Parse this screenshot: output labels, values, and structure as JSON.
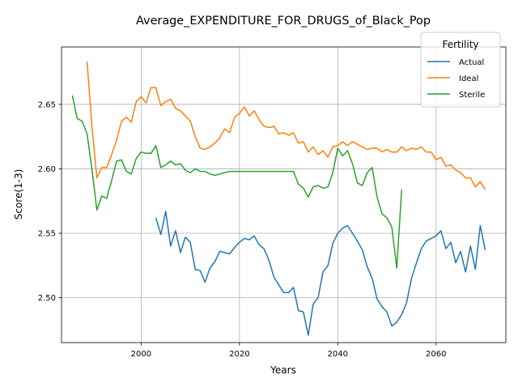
{
  "chart_data": {
    "type": "line",
    "title": "Average_EXPENDITURE_FOR_DRUGS_of_Black_Pop",
    "xlabel": "Years",
    "ylabel": "Score(1-3)",
    "xlim": [
      1983.8,
      2074.2
    ],
    "ylim": [
      2.4652,
      2.6945
    ],
    "xticks": [
      2000,
      2020,
      2040,
      2060
    ],
    "yticks": [
      2.5,
      2.55,
      2.6,
      2.65
    ],
    "ytick_labels": [
      "2.50",
      "2.55",
      "2.60",
      "2.65"
    ],
    "grid": true,
    "legend": {
      "title": "Fertility",
      "placement": "top-right"
    },
    "series": [
      {
        "name": "Actual",
        "color": "#1f77b4",
        "x": [
          2003,
          2004,
          2005,
          2006,
          2007,
          2008,
          2009,
          2010,
          2011,
          2012,
          2013,
          2014,
          2015,
          2016,
          2017,
          2018,
          2019,
          2020,
          2021,
          2022,
          2023,
          2024,
          2025,
          2026,
          2027,
          2028,
          2029,
          2030,
          2031,
          2032,
          2033,
          2034,
          2035,
          2036,
          2037,
          2038,
          2039,
          2040,
          2041,
          2042,
          2043,
          2044,
          2045,
          2046,
          2047,
          2048,
          2049,
          2050,
          2051,
          2052,
          2053,
          2054,
          2055,
          2056,
          2057,
          2058,
          2059,
          2060,
          2061,
          2062,
          2063,
          2064,
          2065,
          2066,
          2067,
          2068,
          2069,
          2070
        ],
        "y": [
          2.562,
          2.549,
          2.567,
          2.54,
          2.552,
          2.535,
          2.547,
          2.543,
          2.522,
          2.521,
          2.512,
          2.523,
          2.528,
          2.536,
          2.535,
          2.534,
          2.539,
          2.543,
          2.546,
          2.545,
          2.548,
          2.541,
          2.538,
          2.529,
          2.516,
          2.51,
          2.504,
          2.504,
          2.508,
          2.49,
          2.489,
          2.471,
          2.495,
          2.5,
          2.52,
          2.525,
          2.542,
          2.55,
          2.554,
          2.556,
          2.55,
          2.544,
          2.537,
          2.524,
          2.515,
          2.499,
          2.493,
          2.489,
          2.478,
          2.481,
          2.487,
          2.496,
          2.515,
          2.527,
          2.538,
          2.544,
          2.546,
          2.548,
          2.552,
          2.538,
          2.543,
          2.527,
          2.536,
          2.52,
          2.54,
          2.522,
          2.556,
          2.537
        ]
      },
      {
        "name": "Ideal",
        "color": "#ff7f0e",
        "x": [
          1989,
          1990,
          1991,
          1992,
          1993,
          1994,
          1995,
          1996,
          1997,
          1998,
          1999,
          2000,
          2001,
          2002,
          2003,
          2004,
          2005,
          2006,
          2007,
          2008,
          2009,
          2010,
          2011,
          2012,
          2013,
          2014,
          2015,
          2016,
          2017,
          2018,
          2019,
          2020,
          2021,
          2022,
          2023,
          2024,
          2025,
          2026,
          2027,
          2028,
          2029,
          2030,
          2031,
          2032,
          2033,
          2034,
          2035,
          2036,
          2037,
          2038,
          2039,
          2040,
          2041,
          2042,
          2043,
          2044,
          2045,
          2046,
          2047,
          2048,
          2049,
          2050,
          2051,
          2052,
          2053,
          2054,
          2055,
          2056,
          2057,
          2058,
          2059,
          2060,
          2061,
          2062,
          2063,
          2064,
          2065,
          2066,
          2067,
          2068,
          2069,
          2070
        ],
        "y": [
          2.683,
          2.632,
          2.593,
          2.601,
          2.601,
          2.611,
          2.622,
          2.637,
          2.64,
          2.636,
          2.652,
          2.656,
          2.651,
          2.663,
          2.663,
          2.649,
          2.652,
          2.654,
          2.647,
          2.645,
          2.641,
          2.637,
          2.625,
          2.616,
          2.615,
          2.617,
          2.62,
          2.624,
          2.631,
          2.628,
          2.64,
          2.643,
          2.648,
          2.641,
          2.645,
          2.638,
          2.633,
          2.632,
          2.633,
          2.627,
          2.628,
          2.626,
          2.628,
          2.62,
          2.621,
          2.613,
          2.617,
          2.611,
          2.614,
          2.609,
          2.617,
          2.618,
          2.621,
          2.618,
          2.621,
          2.619,
          2.617,
          2.615,
          2.616,
          2.616,
          2.613,
          2.615,
          2.613,
          2.613,
          2.617,
          2.614,
          2.616,
          2.615,
          2.617,
          2.613,
          2.613,
          2.607,
          2.609,
          2.602,
          2.603,
          2.599,
          2.597,
          2.593,
          2.593,
          2.586,
          2.59,
          2.584
        ]
      },
      {
        "name": "Sterile",
        "color": "#2ca02c",
        "x": [
          1986,
          1987,
          1988,
          1989,
          1990,
          1991,
          1992,
          1993,
          1994,
          1995,
          1996,
          1997,
          1998,
          1999,
          2000,
          2001,
          2002,
          2003,
          2004,
          2005,
          2006,
          2007,
          2008,
          2009,
          2010,
          2011,
          2012,
          2013,
          2014,
          2015,
          2016,
          2017,
          2018,
          2019,
          2020,
          2021,
          2022,
          2023,
          2024,
          2025,
          2026,
          2027,
          2028,
          2029,
          2030,
          2031,
          2032,
          2033,
          2034,
          2035,
          2036,
          2037,
          2038,
          2039,
          2040,
          2041,
          2042,
          2043,
          2044,
          2045,
          2046,
          2047,
          2048,
          2049,
          2050,
          2051,
          2052,
          2053
        ],
        "y": [
          2.657,
          2.639,
          2.637,
          2.627,
          2.599,
          2.568,
          2.579,
          2.577,
          2.591,
          2.606,
          2.607,
          2.598,
          2.596,
          2.608,
          2.613,
          2.612,
          2.612,
          2.618,
          2.601,
          2.603,
          2.606,
          2.603,
          2.604,
          2.599,
          2.597,
          2.6,
          2.598,
          2.598,
          2.596,
          2.595,
          2.596,
          2.597,
          2.598,
          2.598,
          2.598,
          2.598,
          2.598,
          2.598,
          2.598,
          2.598,
          2.598,
          2.598,
          2.598,
          2.598,
          2.598,
          2.598,
          2.588,
          2.585,
          2.578,
          2.586,
          2.587,
          2.585,
          2.586,
          2.597,
          2.616,
          2.61,
          2.614,
          2.604,
          2.589,
          2.587,
          2.597,
          2.601,
          2.578,
          2.565,
          2.562,
          2.555,
          2.523,
          2.584
        ]
      }
    ]
  }
}
